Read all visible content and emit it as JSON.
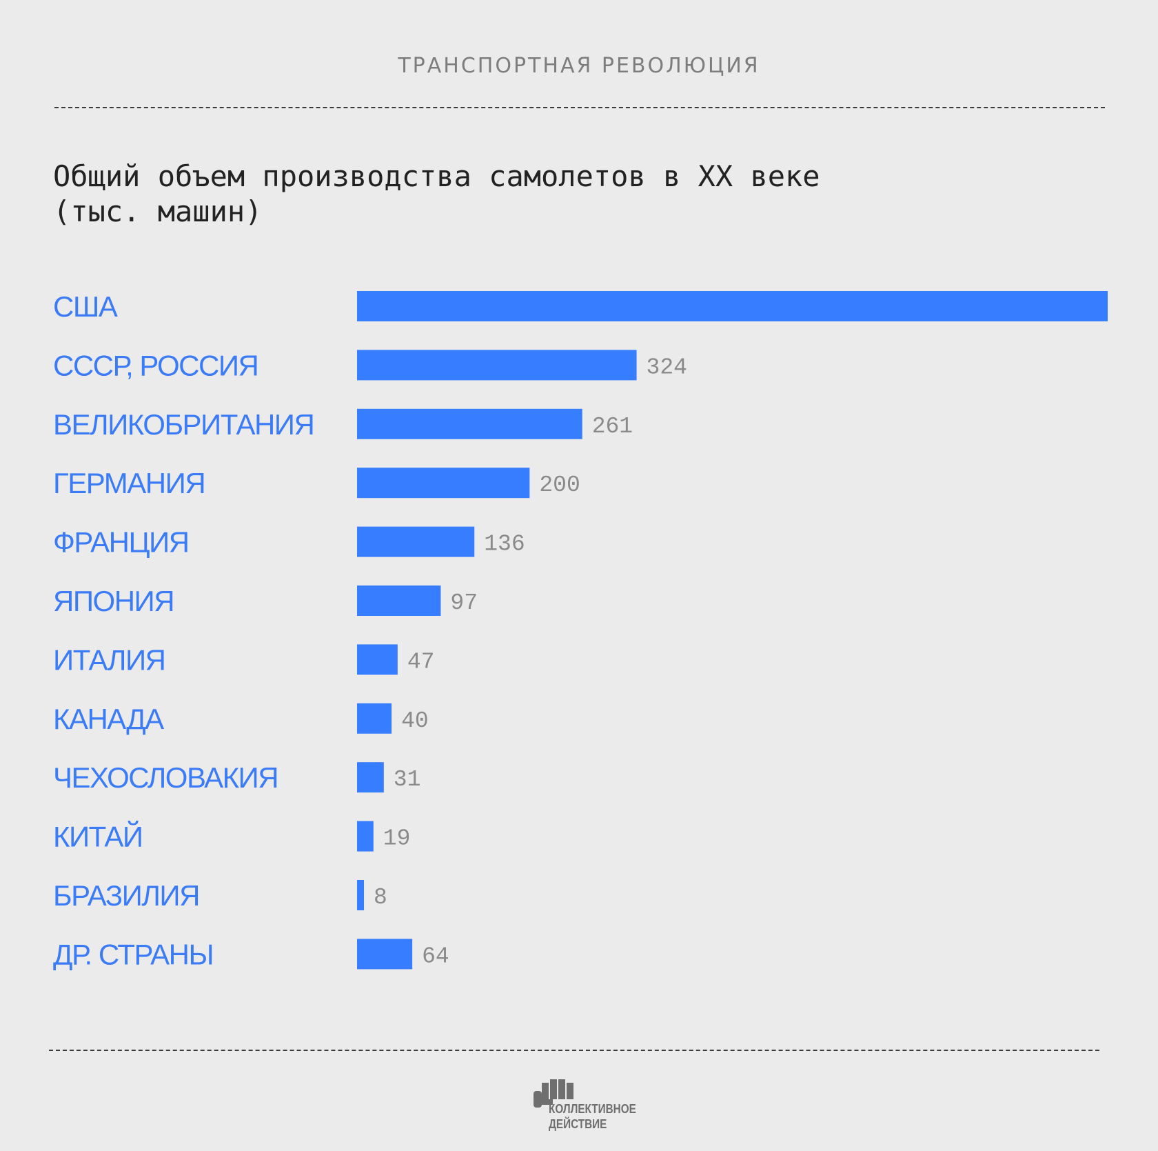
{
  "header": {
    "section_label": "ТРАНСПОРТНАЯ РЕВОЛЮЦИЯ"
  },
  "chart_data": {
    "type": "bar",
    "orientation": "horizontal",
    "title": "Общий объем производства самолетов в XX веке\n(тыс. машин)",
    "categories": [
      "США",
      "СССР, РОССИЯ",
      "ВЕЛИКОБРИТАНИЯ",
      "ГЕРМАНИЯ",
      "ФРАНЦИЯ",
      "ЯПОНИЯ",
      "ИТАЛИЯ",
      "КАНАДА",
      "ЧЕХОСЛОВАКИЯ",
      "КИТАЙ",
      "БРАЗИЛИЯ",
      "ДР. СТРАНЫ"
    ],
    "values": [
      870,
      324,
      261,
      200,
      136,
      97,
      47,
      40,
      31,
      19,
      8,
      64
    ],
    "value_labels": [
      "",
      "324",
      "261",
      "200",
      "136",
      "97",
      "47",
      "40",
      "31",
      "19",
      "8",
      "64"
    ],
    "bar_color": "#377dff",
    "label_color": "#3b7cf6",
    "grid": false
  },
  "footer": {
    "logo_line1": "КОЛЛЕКТИВНОЕ",
    "logo_line2": "ДЕЙСТВИЕ"
  }
}
